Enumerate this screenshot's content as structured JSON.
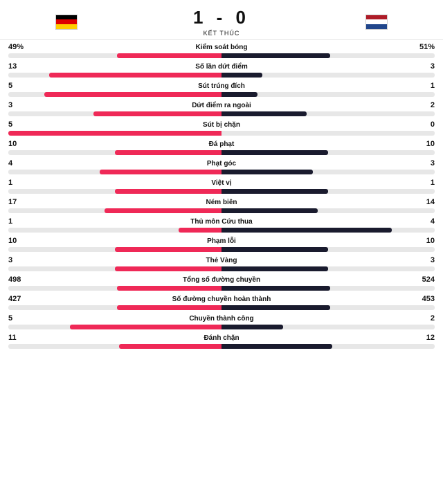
{
  "match": {
    "score": "1 - 0",
    "status": "KẾT THÚC",
    "home_flag": [
      "#000000",
      "#dd0000",
      "#ffce00"
    ],
    "away_flag": [
      "#ae1c28",
      "#ffffff",
      "#21468b"
    ]
  },
  "colors": {
    "home_bar": "#ef2957",
    "away_bar": "#1a1b2e",
    "track": "#e7e7e7"
  },
  "stats": [
    {
      "name": "Kiểm soát bóng",
      "home": "49%",
      "away": "51%",
      "home_pct": 49,
      "away_pct": 51
    },
    {
      "name": "Số lần dứt điểm",
      "home": "13",
      "away": "3",
      "home_pct": 81,
      "away_pct": 19
    },
    {
      "name": "Sút trúng đích",
      "home": "5",
      "away": "1",
      "home_pct": 83,
      "away_pct": 17
    },
    {
      "name": "Dứt điểm ra ngoài",
      "home": "3",
      "away": "2",
      "home_pct": 60,
      "away_pct": 40
    },
    {
      "name": "Sút bị chặn",
      "home": "5",
      "away": "0",
      "home_pct": 100,
      "away_pct": 0
    },
    {
      "name": "Đá phạt",
      "home": "10",
      "away": "10",
      "home_pct": 50,
      "away_pct": 50
    },
    {
      "name": "Phạt góc",
      "home": "4",
      "away": "3",
      "home_pct": 57,
      "away_pct": 43
    },
    {
      "name": "Việt vị",
      "home": "1",
      "away": "1",
      "home_pct": 50,
      "away_pct": 50
    },
    {
      "name": "Ném biên",
      "home": "17",
      "away": "14",
      "home_pct": 55,
      "away_pct": 45
    },
    {
      "name": "Thủ môn Cứu thua",
      "home": "1",
      "away": "4",
      "home_pct": 20,
      "away_pct": 80
    },
    {
      "name": "Phạm lỗi",
      "home": "10",
      "away": "10",
      "home_pct": 50,
      "away_pct": 50
    },
    {
      "name": "Thẻ Vàng",
      "home": "3",
      "away": "3",
      "home_pct": 50,
      "away_pct": 50
    },
    {
      "name": "Tổng số đường chuyền",
      "home": "498",
      "away": "524",
      "home_pct": 49,
      "away_pct": 51
    },
    {
      "name": "Số đường chuyền hoàn thành",
      "home": "427",
      "away": "453",
      "home_pct": 49,
      "away_pct": 51
    },
    {
      "name": "Chuyền thành công",
      "home": "5",
      "away": "2",
      "home_pct": 71,
      "away_pct": 29
    },
    {
      "name": "Đánh chặn",
      "home": "11",
      "away": "12",
      "home_pct": 48,
      "away_pct": 52
    }
  ]
}
